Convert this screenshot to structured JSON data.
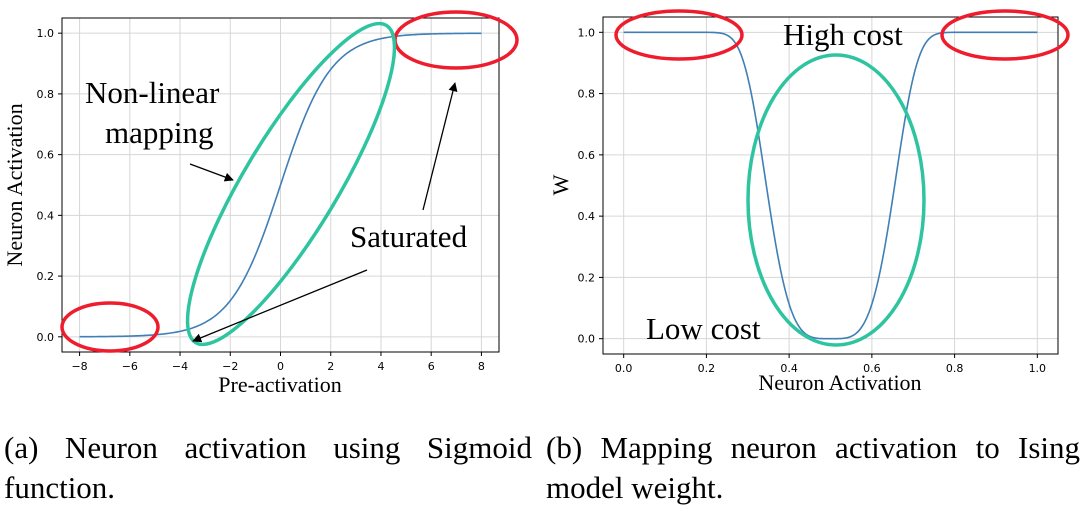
{
  "chart_data": [
    {
      "type": "line",
      "function": "sigmoid",
      "x": [
        -8,
        -7,
        -6,
        -5,
        -4,
        -3,
        -2,
        -1,
        0,
        1,
        2,
        3,
        4,
        5,
        6,
        7,
        8
      ],
      "series": [
        {
          "values": [
            0.0003,
            0.0009,
            0.0025,
            0.0067,
            0.018,
            0.047,
            0.119,
            0.269,
            0.5,
            0.731,
            0.881,
            0.953,
            0.982,
            0.993,
            0.998,
            0.999,
            1.0
          ]
        }
      ],
      "xlabel": "Pre-activation",
      "ylabel": "Neuron Activation",
      "xlim": [
        -8.7,
        8.7
      ],
      "ylim": [
        -0.05,
        1.05
      ],
      "xticks": [
        "−8",
        "−6",
        "−4",
        "−2",
        "0",
        "2",
        "4",
        "6",
        "8"
      ],
      "yticks": [
        "0.0",
        "0.2",
        "0.4",
        "0.6",
        "0.8",
        "1.0"
      ],
      "grid": true,
      "annotations": [
        "Non-linear",
        "mapping",
        "Saturated"
      ],
      "line_color": "#3f7fb6",
      "highlight_colors": {
        "saturated": "#ee1c2c",
        "non_linear": "#2ec4a0"
      }
    },
    {
      "type": "line",
      "x": [
        0.0,
        0.1,
        0.2,
        0.25,
        0.3,
        0.35,
        0.4,
        0.45,
        0.5,
        0.55,
        0.6,
        0.65,
        0.7,
        0.75,
        0.8,
        0.9,
        1.0
      ],
      "series": [
        {
          "values": [
            1.0,
            1.0,
            0.97,
            0.92,
            0.79,
            0.58,
            0.34,
            0.1,
            0.0,
            0.1,
            0.34,
            0.58,
            0.79,
            0.92,
            0.97,
            1.0,
            1.0
          ]
        }
      ],
      "xlabel": "Neuron Activation",
      "ylabel": "W",
      "xlim": [
        -0.05,
        1.05
      ],
      "ylim": [
        -0.05,
        1.05
      ],
      "xticks": [
        "0.0",
        "0.2",
        "0.4",
        "0.6",
        "0.8",
        "1.0"
      ],
      "yticks": [
        "0.0",
        "0.2",
        "0.4",
        "0.6",
        "0.8",
        "1.0"
      ],
      "grid": true,
      "annotations": [
        "High cost",
        "Low cost"
      ],
      "line_color": "#3f7fb6",
      "highlight_colors": {
        "high_cost": "#ee1c2c",
        "low_cost": "#2ec4a0"
      }
    }
  ],
  "captions": {
    "a": "(a) Neuron activation using Sigmoid function.",
    "b": "(b) Mapping neuron activation to Ising model weight."
  }
}
